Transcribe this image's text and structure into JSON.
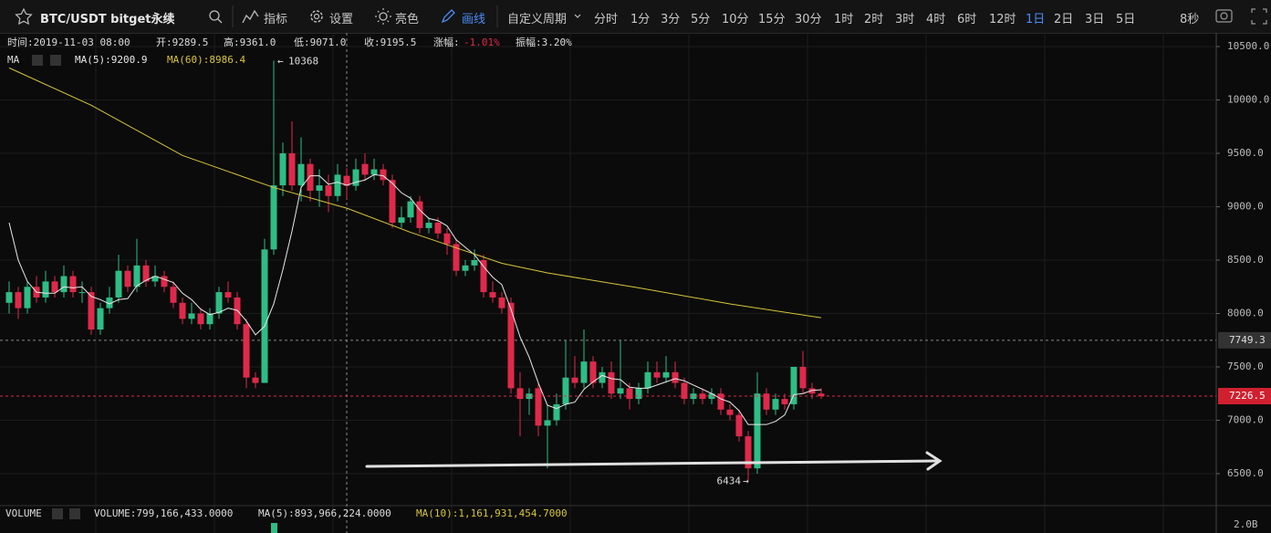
{
  "toolbar": {
    "symbol": "BTC/USDT bitget永续",
    "tools": [
      "指标",
      "设置",
      "亮色",
      "画线"
    ],
    "custom_period": "自定义周期",
    "periods": [
      "分时",
      "1分",
      "3分",
      "5分",
      "10分",
      "15分",
      "30分",
      "1时",
      "2时",
      "3时",
      "4时",
      "6时",
      "12时",
      "1日",
      "2日",
      "3日",
      "5日"
    ],
    "active_period": "1日",
    "refresh": "8秒"
  },
  "info": {
    "time": "时间:2019-11-03 08:00",
    "open": "开:9289.5",
    "high": "高:9361.0",
    "low": "低:9071.0",
    "close": "收:9195.5",
    "change_label": "涨幅:",
    "change": "-1.01%",
    "amplitude": "振幅:3.20%",
    "ma_label": "MA",
    "ma5": "MA(5):9200.9",
    "ma60": "MA(60):8986.4"
  },
  "volume": {
    "label": "VOLUME",
    "value": "VOLUME:799,166,433.0000",
    "ma5": "MA(5):893,966,224.0000",
    "ma10": "MA(10):1,161,931,454.7000",
    "axis_label": "2.0B"
  },
  "chart_data": {
    "type": "candlestick",
    "up_color": "#2ebd85",
    "down_color": "#e0294a",
    "ylim": [
      6218,
      10611
    ],
    "yticks": [
      {
        "value": 6500,
        "label": "6500.0"
      },
      {
        "value": 7000,
        "label": "7000.0"
      },
      {
        "value": 7500,
        "label": "7500.0"
      },
      {
        "value": 8000,
        "label": "8000.0"
      },
      {
        "value": 8500,
        "label": "8500.0"
      },
      {
        "value": 9000,
        "label": "9000.0"
      },
      {
        "value": 9500,
        "label": "9500.0"
      },
      {
        "value": 10000,
        "label": "10000.0"
      },
      {
        "value": 10500,
        "label": "10500.0"
      }
    ],
    "grid": true,
    "marker_line": 7749.3,
    "candles": [
      [
        8100,
        8300,
        8000,
        8200
      ],
      [
        8200,
        8250,
        7950,
        8050
      ],
      [
        8050,
        8300,
        8000,
        8250
      ],
      [
        8250,
        8350,
        8100,
        8150
      ],
      [
        8150,
        8400,
        8100,
        8300
      ],
      [
        8300,
        8350,
        8150,
        8200
      ],
      [
        8200,
        8450,
        8150,
        8350
      ],
      [
        8350,
        8400,
        8150,
        8200
      ],
      [
        8200,
        8300,
        8100,
        8200
      ],
      [
        8200,
        8250,
        7800,
        7850
      ],
      [
        7850,
        8100,
        7800,
        8050
      ],
      [
        8050,
        8250,
        8000,
        8150
      ],
      [
        8150,
        8550,
        8100,
        8400
      ],
      [
        8400,
        8450,
        8200,
        8250
      ],
      [
        8250,
        8700,
        8200,
        8450
      ],
      [
        8450,
        8500,
        8250,
        8300
      ],
      [
        8300,
        8450,
        8250,
        8350
      ],
      [
        8350,
        8400,
        8200,
        8250
      ],
      [
        8250,
        8300,
        8050,
        8100
      ],
      [
        8100,
        8150,
        7900,
        7950
      ],
      [
        7950,
        8100,
        7900,
        8000
      ],
      [
        8000,
        8050,
        7850,
        7900
      ],
      [
        7900,
        8050,
        7850,
        8000
      ],
      [
        8000,
        8250,
        7950,
        8200
      ],
      [
        8200,
        8300,
        8100,
        8150
      ],
      [
        8150,
        8200,
        7850,
        7900
      ],
      [
        7900,
        7950,
        7300,
        7400
      ],
      [
        7400,
        7450,
        7300,
        7350
      ],
      [
        7350,
        8700,
        7350,
        8600
      ],
      [
        8600,
        10368,
        8550,
        9200
      ],
      [
        9200,
        9600,
        9100,
        9500
      ],
      [
        9500,
        9800,
        9150,
        9200
      ],
      [
        9200,
        9650,
        9050,
        9400
      ],
      [
        9400,
        9450,
        9050,
        9150
      ],
      [
        9150,
        9350,
        9000,
        9200
      ],
      [
        9200,
        9300,
        8950,
        9100
      ],
      [
        9100,
        9400,
        9050,
        9300
      ],
      [
        9289.5,
        9361,
        9071,
        9195.5
      ],
      [
        9195.5,
        9450,
        9150,
        9350
      ],
      [
        9400,
        9500,
        9250,
        9300
      ],
      [
        9300,
        9450,
        9250,
        9350
      ],
      [
        9350,
        9400,
        9200,
        9250
      ],
      [
        9250,
        9300,
        8800,
        8850
      ],
      [
        8850,
        9000,
        8800,
        8900
      ],
      [
        8900,
        9100,
        8850,
        9050
      ],
      [
        9050,
        9100,
        8750,
        8800
      ],
      [
        8800,
        8900,
        8750,
        8850
      ],
      [
        8850,
        8900,
        8700,
        8750
      ],
      [
        8750,
        8800,
        8550,
        8650
      ],
      [
        8650,
        8700,
        8350,
        8400
      ],
      [
        8400,
        8500,
        8350,
        8450
      ],
      [
        8450,
        8600,
        8400,
        8500
      ],
      [
        8500,
        8550,
        8150,
        8200
      ],
      [
        8200,
        8300,
        8100,
        8150
      ],
      [
        8150,
        8200,
        8000,
        8050
      ],
      [
        8100,
        8150,
        7250,
        7300
      ],
      [
        7300,
        7450,
        6850,
        7200
      ],
      [
        7200,
        7300,
        7050,
        7250
      ],
      [
        7300,
        7350,
        6850,
        6950
      ],
      [
        6950,
        7150,
        6550,
        7000
      ],
      [
        7000,
        7250,
        6950,
        7150
      ],
      [
        7150,
        7750,
        7100,
        7400
      ],
      [
        7400,
        7600,
        7300,
        7350
      ],
      [
        7350,
        7850,
        7300,
        7550
      ],
      [
        7550,
        7600,
        7300,
        7350
      ],
      [
        7350,
        7500,
        7300,
        7450
      ],
      [
        7450,
        7550,
        7200,
        7250
      ],
      [
        7250,
        7750,
        7200,
        7300
      ],
      [
        7300,
        7350,
        7100,
        7200
      ],
      [
        7200,
        7350,
        7150,
        7300
      ],
      [
        7300,
        7550,
        7250,
        7450
      ],
      [
        7450,
        7550,
        7350,
        7400
      ],
      [
        7400,
        7600,
        7350,
        7450
      ],
      [
        7450,
        7550,
        7300,
        7350
      ],
      [
        7350,
        7400,
        7150,
        7200
      ],
      [
        7200,
        7300,
        7150,
        7250
      ],
      [
        7250,
        7300,
        7150,
        7200
      ],
      [
        7200,
        7300,
        7150,
        7250
      ],
      [
        7250,
        7300,
        7050,
        7100
      ],
      [
        7100,
        7150,
        7000,
        7050
      ],
      [
        7050,
        7100,
        6800,
        6850
      ],
      [
        6850,
        6900,
        6434,
        6550
      ],
      [
        6550,
        7450,
        6500,
        7250
      ],
      [
        7250,
        7300,
        7050,
        7100
      ],
      [
        7100,
        7250,
        7050,
        7200
      ],
      [
        7200,
        7250,
        7100,
        7150
      ],
      [
        7150,
        7500,
        7100,
        7500
      ],
      [
        7500,
        7650,
        7250,
        7300
      ],
      [
        7300,
        7350,
        7200,
        7250
      ],
      [
        7250,
        7300,
        7200,
        7226.5
      ]
    ],
    "series": [
      {
        "name": "MA(5)",
        "color": "#e8e8e8",
        "x": [
          0,
          1,
          2,
          3,
          4,
          5,
          6,
          7,
          8,
          9,
          10,
          11,
          12,
          13,
          14,
          15,
          16,
          17,
          18,
          19,
          20,
          21,
          22,
          23,
          24,
          25,
          26,
          27,
          28,
          29,
          30,
          31,
          32,
          33,
          34,
          35,
          36,
          37,
          38,
          39,
          40,
          41,
          42,
          43,
          44,
          45,
          46,
          47,
          48,
          49,
          50,
          51,
          52,
          53,
          54,
          55,
          56,
          57,
          58,
          59,
          60,
          61,
          62,
          63,
          64,
          65,
          66,
          67,
          68,
          69,
          70,
          71,
          72,
          73,
          74,
          75,
          76,
          77,
          78,
          79,
          80,
          81,
          82,
          83,
          84,
          85,
          86,
          87,
          88,
          89
        ],
        "values": [
          8850,
          8500,
          8300,
          8200,
          8190,
          8190,
          8250,
          8240,
          8250,
          8160,
          8130,
          8090,
          8130,
          8140,
          8260,
          8310,
          8350,
          8320,
          8290,
          8190,
          8130,
          8040,
          7990,
          8010,
          8050,
          8030,
          7930,
          7800,
          7880,
          8090,
          8410,
          8770,
          9180,
          9290,
          9290,
          9210,
          9230,
          9200.9,
          9230,
          9250,
          9300,
          9290,
          9220,
          9130,
          9080,
          8970,
          8890,
          8870,
          8820,
          8690,
          8620,
          8550,
          8440,
          8340,
          8270,
          8040,
          7780,
          7590,
          7350,
          7140,
          7110,
          7150,
          7170,
          7290,
          7360,
          7420,
          7390,
          7380,
          7310,
          7300,
          7300,
          7330,
          7360,
          7390,
          7370,
          7330,
          7290,
          7250,
          7200,
          7170,
          7090,
          6960,
          6960,
          6960,
          6990,
          7050,
          7240,
          7250,
          7280,
          7285
        ]
      },
      {
        "name": "MA(60)",
        "color": "#d8c53a",
        "x": [
          0,
          9,
          19,
          29,
          37,
          44,
          54,
          59,
          69,
          79,
          89
        ],
        "values": [
          10300,
          9950,
          9480,
          9180,
          8986.4,
          8760,
          8470,
          8380,
          8240,
          8090,
          7960
        ]
      }
    ]
  }
}
